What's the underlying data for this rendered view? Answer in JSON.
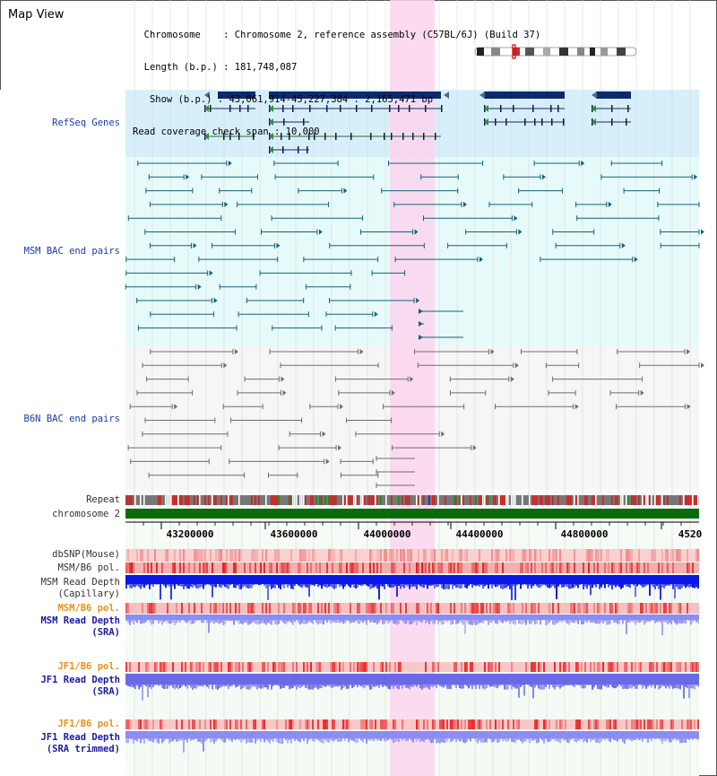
{
  "header": {
    "title": "Map View",
    "info_lines": [
      "  Chromosome    : Chromosome 2, reference assembly (C57BL/6J) (Build 37)",
      "  Length (b.p.) : 181,748,087",
      "   Show (b.p.) : 43,061,914-45,227,384 : 2,165,471 bp",
      "Read coverage check span : 10,000"
    ]
  },
  "tracks": {
    "refseq": "RefSeq Genes",
    "msm_bac": "MSM BAC end pairs",
    "b6n_bac": "B6N BAC end pairs",
    "repeat": "Repeat",
    "chromosome": "chromosome 2",
    "dbsnp": "dbSNP(Mouse)",
    "msm_b6_pol1": "MSM/B6 pol.",
    "msm_depth_cap_1": "MSM Read Depth",
    "msm_depth_cap_2": "(Capillary)",
    "msm_b6_pol2": "MSM/B6 pol.",
    "msm_depth_sra_1": "MSM Read Depth",
    "msm_depth_sra_2": "(SRA)",
    "jf1_b6_pol1": "JF1/B6 pol.",
    "jf1_depth_sra_1": "JF1 Read Depth",
    "jf1_depth_sra_2": "(SRA)",
    "jf1_b6_pol2": "JF1/B6 pol.",
    "jf1_depth_trim_1": "JF1 Read Depth",
    "jf1_depth_trim_2": "(SRA trimmed)"
  },
  "ruler": {
    "ticks": [
      "43200000",
      "43600000",
      "44000000",
      "44400000",
      "44800000",
      "4520"
    ]
  },
  "colors": {
    "refseq_bg": "#d7effa",
    "msm_bg": "#e6fafa",
    "b6n_bg": "#f4f4f4",
    "highlight": "#fbd5ee",
    "gene": "#0d2a6b",
    "msm_pair": "#13607a",
    "b6n_pair": "#6e6e6e",
    "chrom_bar": "#0a6b0a",
    "depth_dark": "#0a17e6",
    "depth_light": "#8c8cf2",
    "snp_pink": "#f6a8a8",
    "pol_red": "#e83a3a"
  }
}
